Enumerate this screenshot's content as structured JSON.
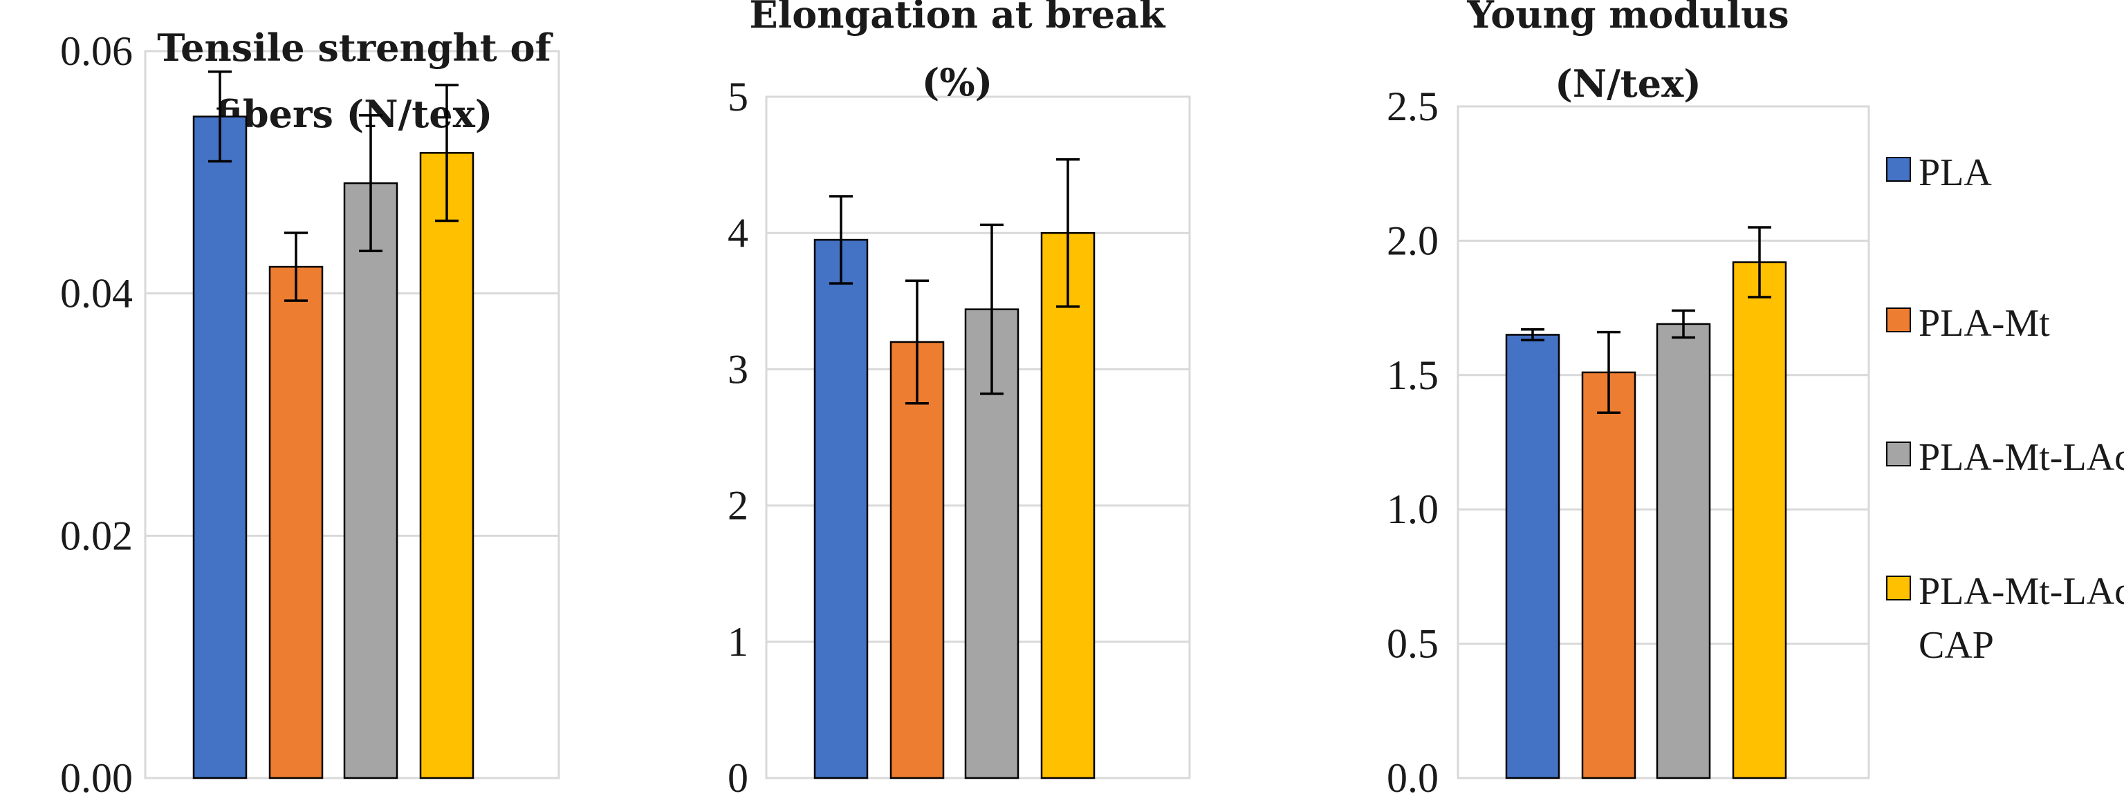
{
  "chart_data": [
    {
      "type": "bar",
      "title_lines": [
        "Tensile strenght of",
        "fibers (N/tex)"
      ],
      "title": "Tensile strenght of fibers (N/tex)",
      "categories": [
        "PLA",
        "PLA-Mt",
        "PLA-Mt-LAc",
        "PLA-Mt-LAc-CAP"
      ],
      "values": [
        0.0546,
        0.0422,
        0.0491,
        0.0516
      ],
      "errors": [
        0.0037,
        0.0028,
        0.0056,
        0.0056
      ],
      "ylim": [
        0,
        0.06
      ],
      "yticks": [
        0,
        0.02,
        0.04,
        0.06
      ],
      "ytick_labels": [
        "0.00",
        "0.02",
        "0.04",
        "0.06"
      ],
      "grid": true
    },
    {
      "type": "bar",
      "title_lines": [
        "Elongation at break",
        "(%)"
      ],
      "title": "Elongation at break (%)",
      "categories": [
        "PLA",
        "PLA-Mt",
        "PLA-Mt-LAc",
        "PLA-Mt-LAc-CAP"
      ],
      "values": [
        3.95,
        3.2,
        3.44,
        4.0
      ],
      "errors": [
        0.32,
        0.45,
        0.62,
        0.54
      ],
      "ylim": [
        0,
        5
      ],
      "yticks": [
        0,
        1,
        2,
        3,
        4,
        5
      ],
      "ytick_labels": [
        "0",
        "1",
        "2",
        "3",
        "4",
        "5"
      ],
      "grid": true
    },
    {
      "type": "bar",
      "title_lines": [
        "Young modulus",
        "(N/tex)"
      ],
      "title": "Young modulus (N/tex)",
      "categories": [
        "PLA",
        "PLA-Mt",
        "PLA-Mt-LAc",
        "PLA-Mt-LAc-CAP"
      ],
      "values": [
        1.65,
        1.51,
        1.69,
        1.92
      ],
      "errors": [
        0.02,
        0.15,
        0.05,
        0.13
      ],
      "ylim": [
        0,
        2.5
      ],
      "yticks": [
        0,
        0.5,
        1.0,
        1.5,
        2.0,
        2.5
      ],
      "ytick_labels": [
        "0.0",
        "0.5",
        "1.0",
        "1.5",
        "2.0",
        "2.5"
      ],
      "grid": true
    }
  ],
  "legend": {
    "placement": "right",
    "items": [
      {
        "name": "PLA",
        "lines": [
          "PLA"
        ],
        "color": "#4472C4"
      },
      {
        "name": "PLA-Mt",
        "lines": [
          "PLA-Mt"
        ],
        "color": "#ED7D31"
      },
      {
        "name": "PLA-Mt-LAc",
        "lines": [
          "PLA-Mt-LAc"
        ],
        "color": "#A5A5A5"
      },
      {
        "name": "PLA-Mt-LAc-CAP",
        "lines": [
          "PLA-Mt-LAc-",
          "CAP"
        ],
        "color": "#FFC000"
      }
    ]
  }
}
